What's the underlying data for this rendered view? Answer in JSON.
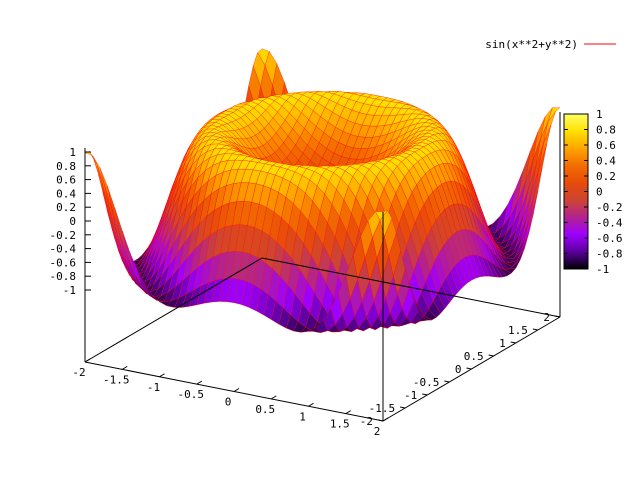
{
  "chart_data": {
    "type": "surface",
    "function": "sin(x**2+y**2)",
    "legend": {
      "label": "sin(x**2+y**2)",
      "line_color": "#ff0000",
      "placement": "top-right"
    },
    "x_range": [
      -2,
      2
    ],
    "y_range": [
      -2,
      2
    ],
    "z_range": [
      -1,
      1
    ],
    "x_ticks": [
      "-2",
      "-1.5",
      "-1",
      "-0.5",
      "0",
      "0.5",
      "1",
      "1.5",
      "2"
    ],
    "y_ticks": [
      "-2",
      "-1.5",
      "-1",
      "-0.5",
      "0",
      "0.5",
      "1",
      "1.5",
      "2"
    ],
    "z_ticks": [
      "-1",
      "-0.8",
      "-0.6",
      "-0.4",
      "-0.2",
      "0",
      "0.2",
      "0.4",
      "0.6",
      "0.8",
      "1"
    ],
    "colorbar": {
      "range": [
        -1,
        1
      ],
      "ticks": [
        "1",
        "0.8",
        "0.6",
        "0.4",
        "0.2",
        "0",
        "-0.2",
        "-0.4",
        "-0.6",
        "-0.8",
        "-1"
      ],
      "palette": [
        "#000000",
        "#5a009c",
        "#9e00ff",
        "#b2238f",
        "#cc4433",
        "#e84b0a",
        "#f26d00",
        "#ffa500",
        "#ffe000",
        "#ffff66"
      ]
    },
    "grid": false,
    "mesh_color": "#ff0000",
    "samples": 40
  }
}
